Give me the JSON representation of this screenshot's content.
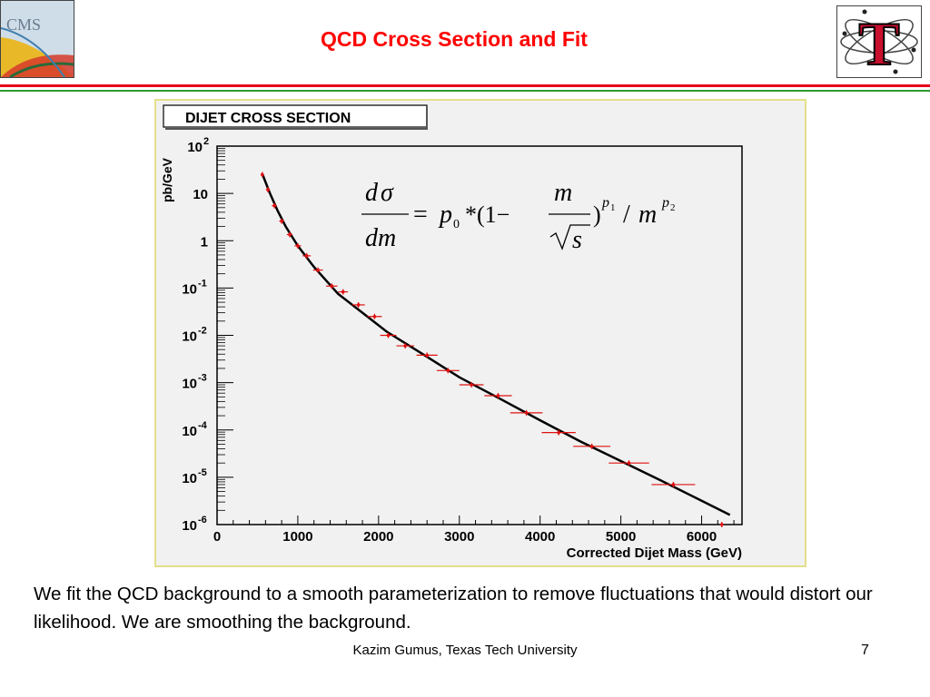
{
  "slide": {
    "title": "QCD Cross Section and Fit",
    "body_text": "We fit the QCD background to a smooth parameterization to remove fluctuations that would distort our likelihood. We are smoothing the background.",
    "footer_author": "Kazim Gumus,  Texas Tech University",
    "page_number": "7",
    "title_color": "#ff0000",
    "rule_colors": [
      "#e8001c",
      "#2e9a2e"
    ]
  },
  "logos": {
    "left": {
      "icon": "cms-logo",
      "text": "CMS"
    },
    "right": {
      "icon": "texas-tech-logo",
      "text": "T"
    }
  },
  "chart_data": {
    "type": "scatter",
    "title": "DIJET CROSS SECTION",
    "xlabel": "Corrected Dijet Mass (GeV)",
    "ylabel": "pb/GeV",
    "xlim": [
      0,
      6500
    ],
    "ylim": [
      1e-06,
      100
    ],
    "y_scale": "log",
    "x_ticks": [
      "0",
      "1000",
      "2000",
      "3000",
      "4000",
      "5000",
      "6000"
    ],
    "y_ticks": [
      {
        "value": 1e-06,
        "base": "10",
        "exp": "-6"
      },
      {
        "value": 1e-05,
        "base": "10",
        "exp": "-5"
      },
      {
        "value": 0.0001,
        "base": "10",
        "exp": "-4"
      },
      {
        "value": 0.001,
        "base": "10",
        "exp": "-3"
      },
      {
        "value": 0.01,
        "base": "10",
        "exp": "-2"
      },
      {
        "value": 0.1,
        "base": "10",
        "exp": "-1"
      },
      {
        "value": 1,
        "base": "1",
        "exp": ""
      },
      {
        "value": 10,
        "base": "10",
        "exp": ""
      },
      {
        "value": 100,
        "base": "10",
        "exp": "2"
      }
    ],
    "formula": "dσ/dm = p0 * (1 − m/√s)^p1 / m^p2",
    "series": [
      {
        "kind": "points",
        "color": "#e01010",
        "points": [
          {
            "x": 560,
            "xerr": 20,
            "y": 25
          },
          {
            "x": 630,
            "xerr": 25,
            "y": 12
          },
          {
            "x": 710,
            "xerr": 30,
            "y": 5.5
          },
          {
            "x": 800,
            "xerr": 30,
            "y": 2.6
          },
          {
            "x": 900,
            "xerr": 35,
            "y": 1.35
          },
          {
            "x": 1000,
            "xerr": 40,
            "y": 0.78
          },
          {
            "x": 1110,
            "xerr": 50,
            "y": 0.48
          },
          {
            "x": 1250,
            "xerr": 60,
            "y": 0.24
          },
          {
            "x": 1420,
            "xerr": 70,
            "y": 0.11
          },
          {
            "x": 1560,
            "xerr": 60,
            "y": 0.083
          },
          {
            "x": 1750,
            "xerr": 80,
            "y": 0.044
          },
          {
            "x": 1950,
            "xerr": 90,
            "y": 0.025
          },
          {
            "x": 2120,
            "xerr": 100,
            "y": 0.01
          },
          {
            "x": 2330,
            "xerr": 110,
            "y": 0.006
          },
          {
            "x": 2600,
            "xerr": 130,
            "y": 0.0038
          },
          {
            "x": 2860,
            "xerr": 140,
            "y": 0.0018
          },
          {
            "x": 3150,
            "xerr": 150,
            "y": 0.0009
          },
          {
            "x": 3480,
            "xerr": 170,
            "y": 0.00053
          },
          {
            "x": 3830,
            "xerr": 200,
            "y": 0.00023
          },
          {
            "x": 4230,
            "xerr": 210,
            "y": 8.8e-05
          },
          {
            "x": 4640,
            "xerr": 230,
            "y": 4.5e-05
          },
          {
            "x": 5100,
            "xerr": 250,
            "y": 2e-05
          },
          {
            "x": 5650,
            "xerr": 270,
            "y": 7e-06
          },
          {
            "x": 6250,
            "xerr": 0,
            "y": 1e-06
          }
        ]
      },
      {
        "kind": "fit",
        "color": "#000000",
        "points": [
          [
            560,
            26
          ],
          [
            650,
            10.5
          ],
          [
            750,
            4.3
          ],
          [
            850,
            2.0
          ],
          [
            1000,
            0.78
          ],
          [
            1200,
            0.28
          ],
          [
            1500,
            0.075
          ],
          [
            1800,
            0.03
          ],
          [
            2100,
            0.012
          ],
          [
            2500,
            0.0045
          ],
          [
            3000,
            0.0013
          ],
          [
            3500,
            0.00046
          ],
          [
            4000,
            0.00016
          ],
          [
            4500,
            5.7e-05
          ],
          [
            5000,
            2.2e-05
          ],
          [
            5500,
            8.5e-06
          ],
          [
            6000,
            3.2e-06
          ],
          [
            6350,
            1.6e-06
          ]
        ]
      }
    ]
  }
}
